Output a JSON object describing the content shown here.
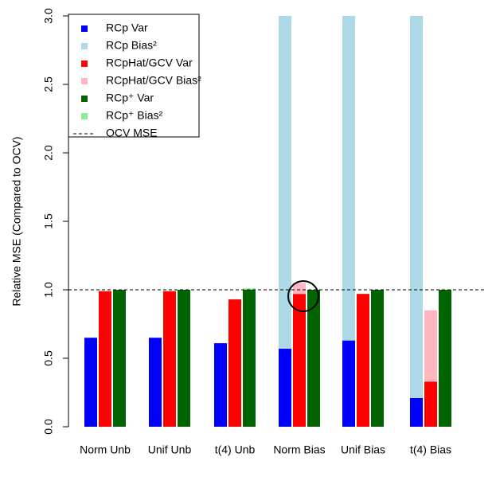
{
  "chart_data": {
    "type": "bar",
    "y_label": "Relative MSE (Compared to OCV)",
    "categories": [
      "Norm Unb",
      "Unif Unb",
      "t(4) Unb",
      "Norm Bias",
      "Unif Bias",
      "t(4) Bias"
    ],
    "series": [
      {
        "name": "RCp Var",
        "color": "#0000ff",
        "values": [
          0.65,
          0.65,
          0.61,
          0.57,
          0.63,
          0.21
        ]
      },
      {
        "name": "RCp Bias²",
        "color": "#add8e6",
        "values": [
          0,
          0,
          0,
          2.5,
          2.5,
          2.9
        ]
      },
      {
        "name": "RCpHat/GCV Var",
        "color": "#ff0000",
        "values": [
          0.99,
          0.99,
          0.93,
          0.97,
          0.97,
          0.33
        ]
      },
      {
        "name": "RCpHat/GCV Bias²",
        "color": "#ffb6c1",
        "values": [
          0,
          0,
          0,
          0.08,
          0,
          0.52
        ]
      },
      {
        "name": "RCp⁺ Var",
        "color": "#006400",
        "values": [
          1.0,
          1.0,
          1.0,
          1.0,
          1.0,
          1.0
        ]
      },
      {
        "name": "RCp⁺ Bias²",
        "color": "#90ee90",
        "values": [
          0,
          0,
          0.01,
          0,
          0,
          0
        ]
      }
    ],
    "reference_line": {
      "value": 1.0,
      "label": "OCV MSE"
    },
    "ylim": [
      0,
      3
    ],
    "yticks": [
      {
        "value": 0,
        "label": "0.0"
      },
      {
        "value": 0.5,
        "label": "0.5"
      },
      {
        "value": 1,
        "label": "1.0"
      },
      {
        "value": 1.5,
        "label": "1.5"
      },
      {
        "value": 2,
        "label": "2.0"
      },
      {
        "value": 2.5,
        "label": "2.5"
      },
      {
        "value": 3,
        "label": "3.0"
      }
    ],
    "legend": "top-left"
  }
}
